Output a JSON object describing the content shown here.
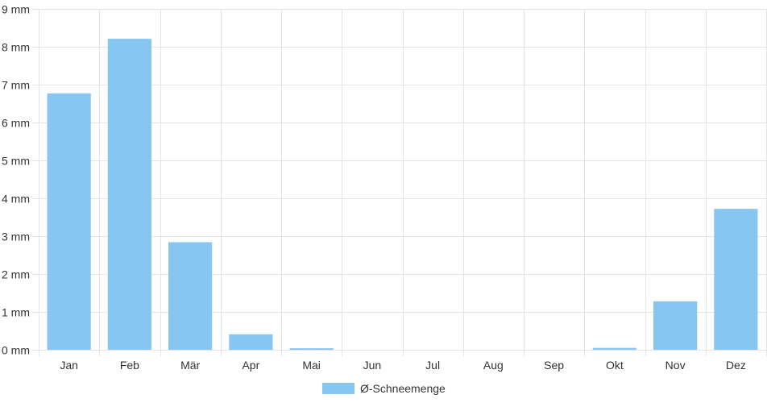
{
  "chart_data": {
    "type": "bar",
    "categories": [
      "Jan",
      "Feb",
      "Mär",
      "Apr",
      "Mai",
      "Jun",
      "Jul",
      "Aug",
      "Sep",
      "Okt",
      "Nov",
      "Dez"
    ],
    "series": [
      {
        "name": "Ø-Schneemenge",
        "values": [
          6.77,
          8.21,
          2.84,
          0.41,
          0.04,
          0,
          0,
          0,
          0,
          0.05,
          1.28,
          3.72
        ],
        "color": "#88c6f2"
      }
    ],
    "y_ticks": [
      "0 mm",
      "1 mm",
      "2 mm",
      "3 mm",
      "4 mm",
      "5 mm",
      "6 mm",
      "7 mm",
      "8 mm",
      "9 mm"
    ],
    "ylim": [
      0,
      9
    ],
    "grid": true,
    "legend_position": "bottom-center"
  }
}
